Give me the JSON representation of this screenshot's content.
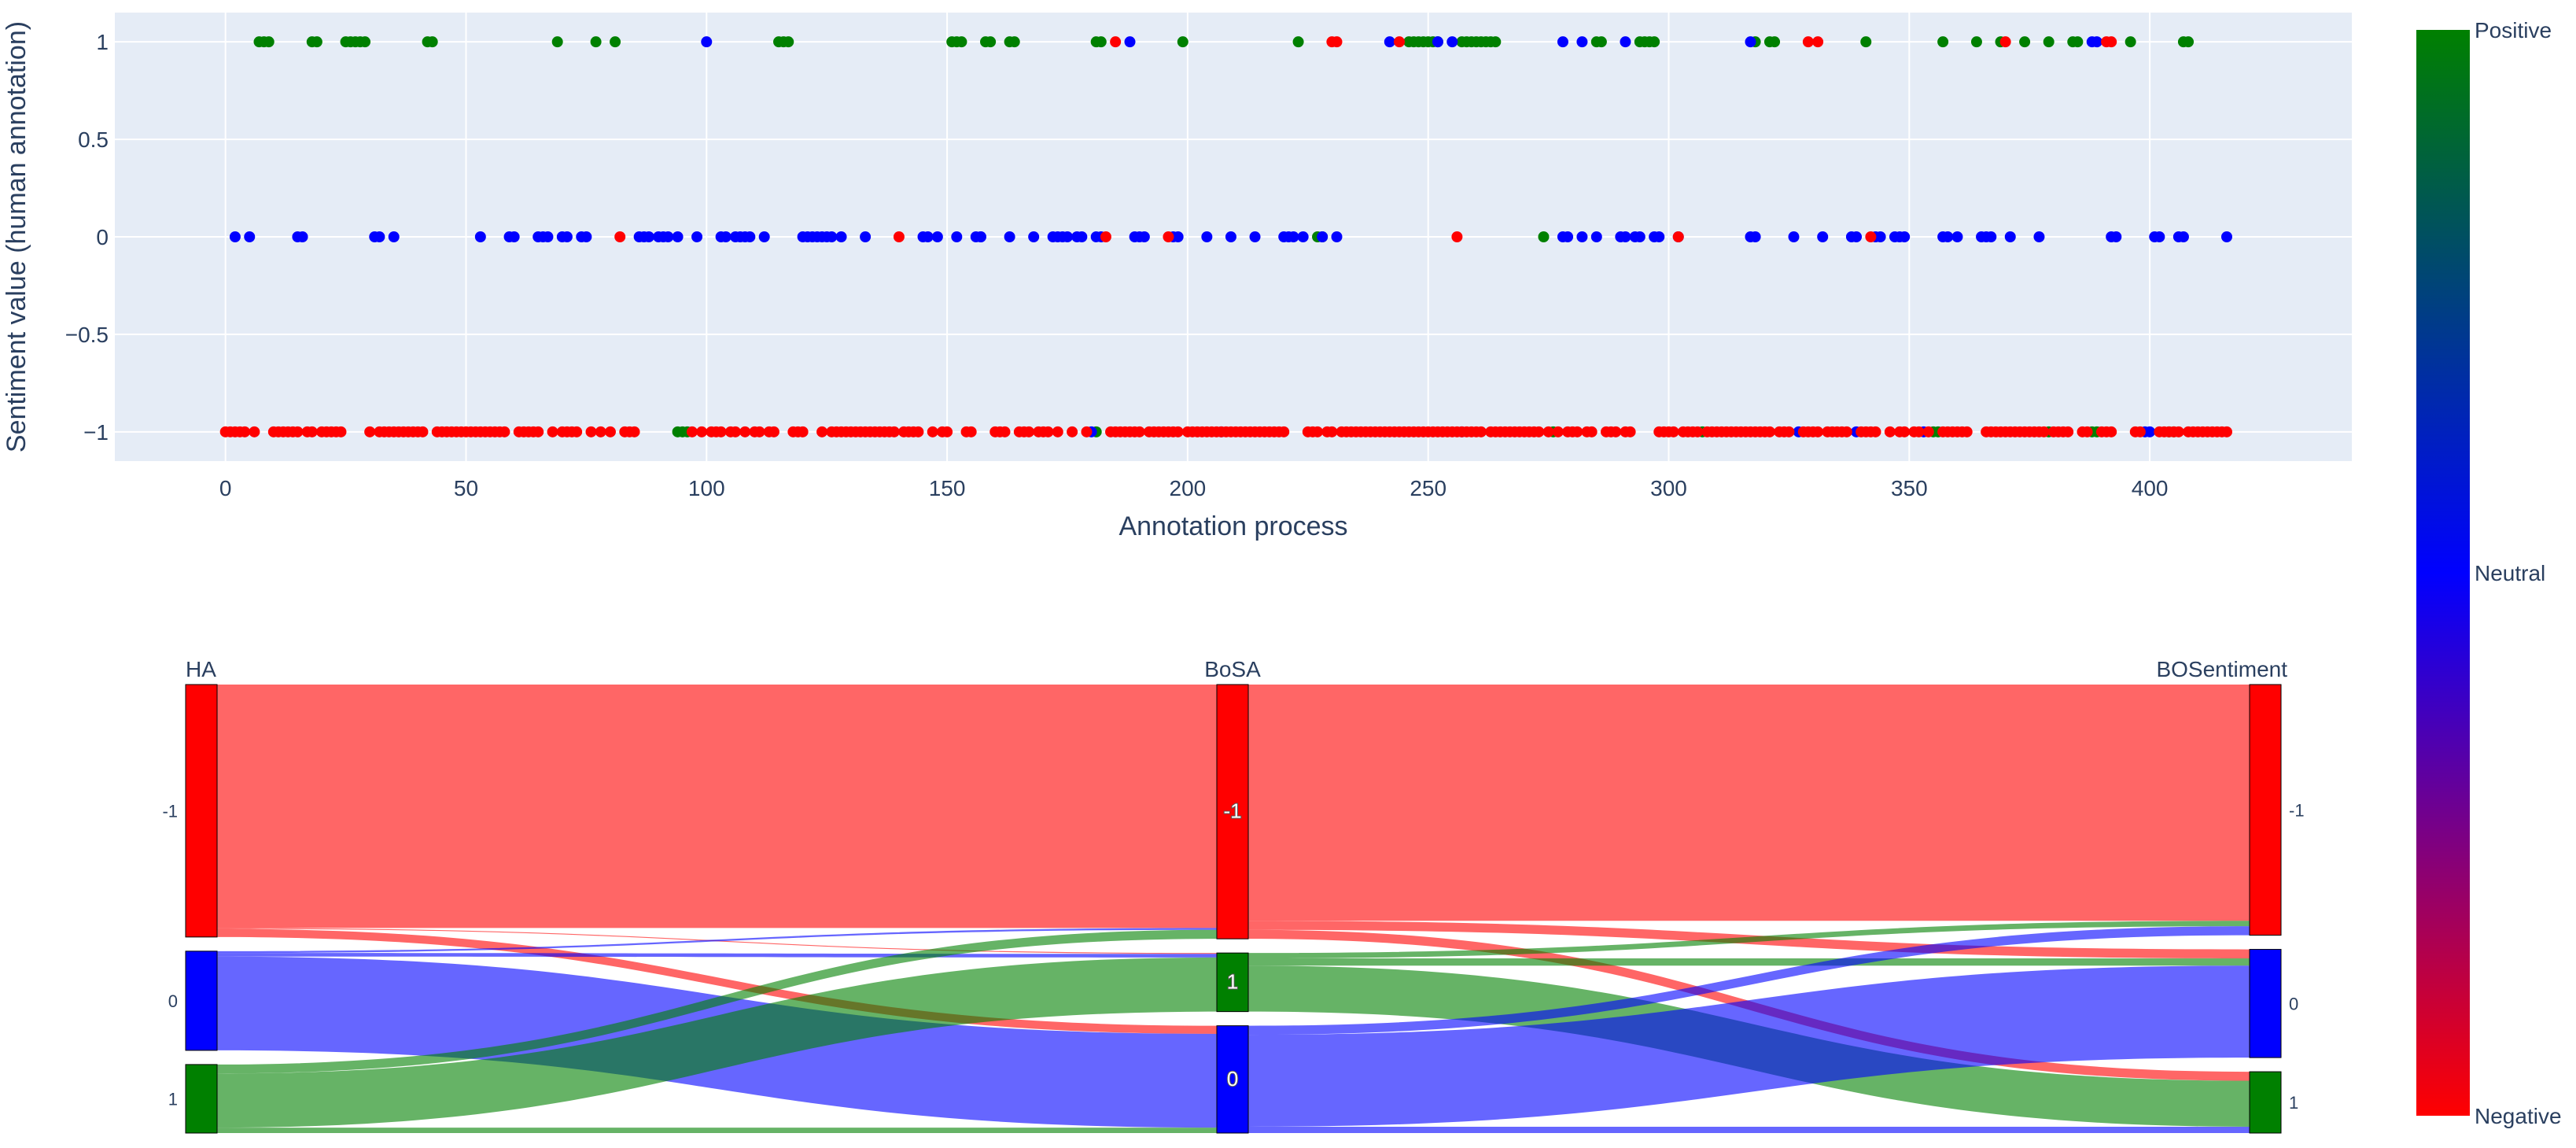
{
  "chart_data": [
    {
      "type": "scatter",
      "title": "",
      "xlabel": "Annotation process",
      "ylabel": "Sentiment value (human annotation)",
      "xlim": [
        -23,
        442
      ],
      "ylim": [
        -1.15,
        1.15
      ],
      "xticks": [
        0,
        50,
        100,
        150,
        200,
        250,
        300,
        350,
        400
      ],
      "yticks": [
        -1,
        -0.5,
        0,
        0.5,
        1
      ],
      "xtick_labels": [
        "0",
        "50",
        "100",
        "150",
        "200",
        "250",
        "300",
        "350",
        "400"
      ],
      "ytick_labels": [
        "−1",
        "−0.5",
        "0",
        "0.5",
        "1"
      ],
      "grid": true,
      "colors": {
        "positive": "#008000",
        "neutral": "#0000ff",
        "negative": "#ff0000"
      },
      "series": [
        {
          "name": "positive",
          "y": 1,
          "x": [
            7,
            8,
            9,
            18,
            19,
            25,
            26,
            27,
            28,
            29,
            42,
            43,
            69,
            77,
            81,
            115,
            116,
            117,
            151,
            152,
            153,
            158,
            159,
            163,
            164,
            181,
            182,
            199,
            223,
            246,
            247,
            248,
            249,
            250,
            251,
            252,
            257,
            258,
            259,
            260,
            261,
            262,
            263,
            264,
            285,
            286,
            294,
            295,
            296,
            297,
            318,
            321,
            322,
            341,
            357,
            364,
            369,
            374,
            379,
            384,
            385,
            396,
            407,
            408
          ],
          "y_at": [
            [
              94,
              -1
            ],
            [
              95,
              -1
            ],
            [
              96,
              -1
            ],
            [
              181,
              -1
            ],
            [
              227,
              0
            ],
            [
              228,
              0
            ],
            [
              276,
              -1
            ],
            [
              274,
              0
            ],
            [
              307,
              -1
            ],
            [
              355,
              -1
            ],
            [
              356,
              -1
            ],
            [
              379,
              -1
            ],
            [
              388,
              -1
            ],
            [
              389,
              -1
            ],
            [
              404,
              -1
            ],
            [
              405,
              -1
            ]
          ]
        },
        {
          "name": "neutral",
          "y": 0,
          "x": [
            2,
            5,
            15,
            16,
            31,
            32,
            35,
            53,
            59,
            60,
            65,
            66,
            67,
            70,
            71,
            74,
            75,
            86,
            87,
            88,
            90,
            91,
            92,
            94,
            98,
            103,
            104,
            106,
            107,
            108,
            109,
            112,
            120,
            121,
            122,
            123,
            124,
            125,
            126,
            128,
            133,
            145,
            146,
            148,
            152,
            156,
            157,
            157,
            163,
            168,
            172,
            173,
            174,
            175,
            177,
            178,
            181,
            182,
            189,
            190,
            191,
            197,
            198,
            204,
            209,
            214,
            220,
            221,
            222,
            224,
            228,
            231,
            278,
            279,
            282,
            285,
            290,
            291,
            293,
            294,
            297,
            298,
            302,
            317,
            318,
            326,
            332,
            338,
            339,
            343,
            344,
            347,
            348,
            349,
            357,
            358,
            360,
            365,
            366,
            367,
            371,
            377,
            392,
            393,
            401,
            402,
            406,
            407,
            416
          ],
          "y_at": [
            [
              100,
              1
            ],
            [
              188,
              1
            ],
            [
              242,
              1
            ],
            [
              252,
              1
            ],
            [
              255,
              1
            ],
            [
              278,
              1
            ],
            [
              282,
              1
            ],
            [
              291,
              1
            ],
            [
              317,
              1
            ],
            [
              388,
              1
            ],
            [
              389,
              1
            ],
            [
              180,
              -1
            ],
            [
              207,
              -1
            ],
            [
              257,
              -1
            ],
            [
              327,
              -1
            ],
            [
              339,
              -1
            ],
            [
              353,
              -1
            ],
            [
              399,
              -1
            ],
            [
              400,
              -1
            ]
          ]
        },
        {
          "name": "negative",
          "y": -1,
          "x": [
            0,
            1,
            2,
            3,
            4,
            6,
            10,
            11,
            12,
            13,
            14,
            15,
            17,
            18,
            20,
            21,
            22,
            23,
            24,
            30,
            32,
            33,
            34,
            35,
            36,
            37,
            38,
            39,
            40,
            41,
            44,
            45,
            46,
            47,
            48,
            49,
            50,
            51,
            52,
            53,
            54,
            55,
            56,
            57,
            58,
            61,
            62,
            63,
            64,
            65,
            68,
            70,
            71,
            72,
            73,
            76,
            78,
            80,
            83,
            84,
            85,
            97,
            99,
            101,
            102,
            103,
            105,
            106,
            108,
            110,
            111,
            113,
            114,
            118,
            119,
            120,
            124,
            126,
            127,
            128,
            129,
            130,
            131,
            132,
            133,
            134,
            135,
            136,
            137,
            138,
            139,
            141,
            142,
            143,
            144,
            147,
            149,
            150,
            154,
            155,
            160,
            161,
            162,
            165,
            166,
            167,
            169,
            170,
            171,
            173,
            176,
            179,
            184,
            185,
            186,
            187,
            188,
            189,
            190,
            192,
            193,
            194,
            195,
            196,
            197,
            198,
            200,
            201,
            202,
            203,
            204,
            205,
            206,
            207,
            208,
            209,
            210,
            211,
            212,
            213,
            214,
            215,
            216,
            217,
            218,
            219,
            220,
            225,
            226,
            227,
            229,
            230,
            232,
            233,
            234,
            235,
            236,
            237,
            238,
            239,
            240,
            241,
            242,
            243,
            244,
            245,
            246,
            247,
            248,
            249,
            250,
            251,
            252,
            253,
            254,
            255,
            256,
            257,
            258,
            259,
            260,
            261,
            263,
            264,
            265,
            266,
            267,
            268,
            269,
            270,
            271,
            272,
            273,
            275,
            277,
            279,
            280,
            281,
            283,
            284,
            287,
            288,
            289,
            291,
            292,
            298,
            299,
            300,
            301,
            303,
            304,
            305,
            306,
            308,
            309,
            310,
            311,
            312,
            313,
            314,
            315,
            316,
            317,
            318,
            319,
            320,
            321,
            323,
            324,
            325,
            328,
            329,
            330,
            331,
            333,
            334,
            335,
            336,
            337,
            340,
            341,
            342,
            343,
            346,
            348,
            349,
            351,
            352,
            354,
            357,
            358,
            359,
            360,
            361,
            362,
            366,
            367,
            368,
            369,
            370,
            371,
            372,
            373,
            374,
            375,
            376,
            377,
            378,
            380,
            381,
            382,
            383,
            386,
            387,
            390,
            391,
            392,
            397,
            398,
            402,
            403,
            404,
            405,
            406,
            408,
            409,
            410,
            411,
            412,
            413,
            414,
            415,
            416
          ],
          "y_at": [
            [
              82,
              0
            ],
            [
              140,
              0
            ],
            [
              183,
              0
            ],
            [
              196,
              0
            ],
            [
              256,
              0
            ],
            [
              302,
              0
            ],
            [
              342,
              0
            ],
            [
              185,
              1
            ],
            [
              230,
              1
            ],
            [
              231,
              1
            ],
            [
              244,
              1
            ],
            [
              329,
              1
            ],
            [
              331,
              1
            ],
            [
              370,
              1
            ],
            [
              391,
              1
            ],
            [
              392,
              1
            ]
          ]
        }
      ]
    },
    {
      "type": "sankey",
      "title": "",
      "columns": [
        "HA",
        "BoSA",
        "BOSentiment"
      ],
      "nodes": [
        {
          "id": "HA_-1",
          "column": "HA",
          "label": "-1",
          "color": "#ff0000"
        },
        {
          "id": "HA_0",
          "column": "HA",
          "label": "0",
          "color": "#0000ff"
        },
        {
          "id": "HA_1",
          "column": "HA",
          "label": "1",
          "color": "#008000"
        },
        {
          "id": "BoSA_-1",
          "column": "BoSA",
          "label": "-1",
          "color": "#ff0000"
        },
        {
          "id": "BoSA_1",
          "column": "BoSA",
          "label": "1",
          "color": "#008000"
        },
        {
          "id": "BoSA_0",
          "column": "BoSA",
          "label": "0",
          "color": "#0000ff"
        },
        {
          "id": "BOS_-1",
          "column": "BOSentiment",
          "label": "-1",
          "color": "#ff0000"
        },
        {
          "id": "BOS_0",
          "column": "BOSentiment",
          "label": "0",
          "color": "#0000ff"
        },
        {
          "id": "BOS_1",
          "column": "BOSentiment",
          "label": "1",
          "color": "#008000"
        }
      ],
      "links": [
        {
          "source": "HA_-1",
          "target": "BoSA_-1",
          "value": 270
        },
        {
          "source": "HA_-1",
          "target": "BoSA_1",
          "value": 1
        },
        {
          "source": "HA_-1",
          "target": "BoSA_0",
          "value": 9
        },
        {
          "source": "HA_0",
          "target": "BoSA_-1",
          "value": 2
        },
        {
          "source": "HA_0",
          "target": "BoSA_1",
          "value": 4
        },
        {
          "source": "HA_0",
          "target": "BoSA_0",
          "value": 104
        },
        {
          "source": "HA_1",
          "target": "BoSA_-1",
          "value": 10
        },
        {
          "source": "HA_1",
          "target": "BoSA_1",
          "value": 60
        },
        {
          "source": "HA_1",
          "target": "BoSA_0",
          "value": 6
        },
        {
          "source": "BoSA_-1",
          "target": "BOS_-1",
          "value": 262
        },
        {
          "source": "BoSA_-1",
          "target": "BOS_0",
          "value": 10
        },
        {
          "source": "BoSA_-1",
          "target": "BOS_1",
          "value": 10
        },
        {
          "source": "BoSA_1",
          "target": "BOS_-1",
          "value": 6
        },
        {
          "source": "BoSA_1",
          "target": "BOS_0",
          "value": 8
        },
        {
          "source": "BoSA_1",
          "target": "BOS_1",
          "value": 51
        },
        {
          "source": "BoSA_0",
          "target": "BOS_-1",
          "value": 10
        },
        {
          "source": "BoSA_0",
          "target": "BOS_0",
          "value": 102
        },
        {
          "source": "BoSA_0",
          "target": "BOS_1",
          "value": 7
        }
      ]
    },
    {
      "type": "colorbar",
      "range": [
        "Negative",
        "Neutral",
        "Positive"
      ],
      "labels": {
        "top": "Positive",
        "middle": "Neutral",
        "bottom": "Negative"
      },
      "colors": [
        "#ff0000",
        "#0000ff",
        "#008000"
      ]
    }
  ]
}
